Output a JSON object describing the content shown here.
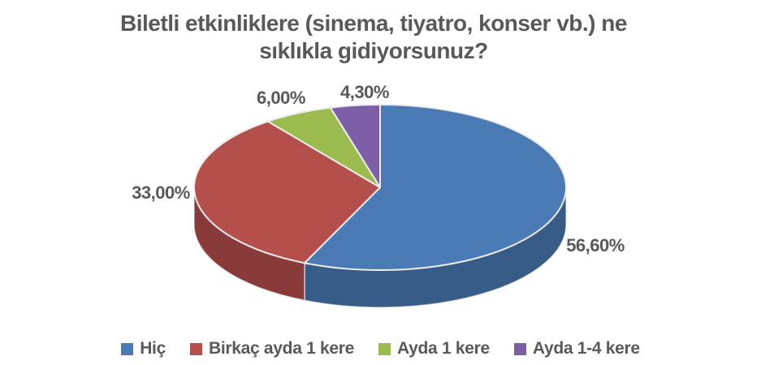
{
  "page": {
    "background": "#ffffff"
  },
  "chart_data": {
    "type": "pie",
    "effect": "3d",
    "title": "Biletli etkinliklere (sinema, tiyatro, konser vb.) ne sıklıkla gidiyorsunuz?",
    "title_lines": [
      "Biletli etkinliklere (sinema, tiyatro, konser vb.) ne",
      "sıklıkla gidiyorsunuz?"
    ],
    "categories": [
      "Hiç",
      "Birkaç ayda 1 kere",
      "Ayda 1 kere",
      "Ayda 1-4 kere"
    ],
    "values": [
      56.6,
      33.0,
      6.0,
      4.3
    ],
    "value_labels": [
      "56,60%",
      "33,00%",
      "6,00%",
      "4,30%"
    ],
    "colors": [
      "#4A7BB5",
      "#B54F4C",
      "#9BBB4E",
      "#7D5FA8"
    ],
    "start_angle_deg": 0,
    "direction": "clockwise",
    "legend_position": "bottom",
    "grid": false,
    "text_color": "#595959"
  }
}
